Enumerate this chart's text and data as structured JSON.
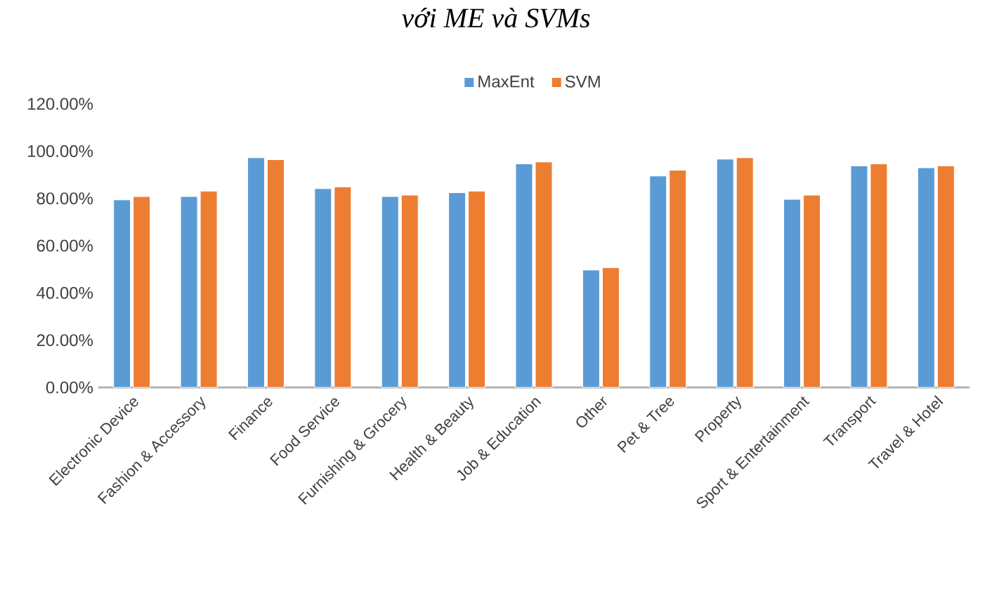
{
  "chart_data": {
    "type": "bar",
    "title": "với ME và SVMs",
    "legend": "top",
    "categories": [
      "Electronic Device",
      "Fashion & Accessory",
      "Finance",
      "Food Service",
      "Furnishing & Grocery",
      "Health & Beauty",
      "Job & Education",
      "Other",
      "Pet & Tree",
      "Property",
      "Sport & Entertainment",
      "Transport",
      "Travel & Hotel"
    ],
    "series": [
      {
        "name": "MaxEnt",
        "color": "#5b9bd5",
        "values": [
          79.4,
          80.8,
          97.2,
          84.1,
          80.8,
          82.4,
          94.6,
          49.7,
          89.5,
          96.6,
          79.6,
          93.8,
          93.0
        ]
      },
      {
        "name": "SVM",
        "color": "#ed7d31",
        "values": [
          80.8,
          83.1,
          96.4,
          84.9,
          81.4,
          83.1,
          95.4,
          50.7,
          91.9,
          97.2,
          81.4,
          94.6,
          93.8
        ]
      }
    ],
    "ylim": [
      0,
      120
    ],
    "yticks": [
      {
        "value": 0,
        "label": "0.00%"
      },
      {
        "value": 20,
        "label": "20.00%"
      },
      {
        "value": 40,
        "label": "40.00%"
      },
      {
        "value": 60,
        "label": "60.00%"
      },
      {
        "value": 80,
        "label": "80.00%"
      },
      {
        "value": 100,
        "label": "100.00%"
      },
      {
        "value": 120,
        "label": "120.00%"
      }
    ]
  }
}
